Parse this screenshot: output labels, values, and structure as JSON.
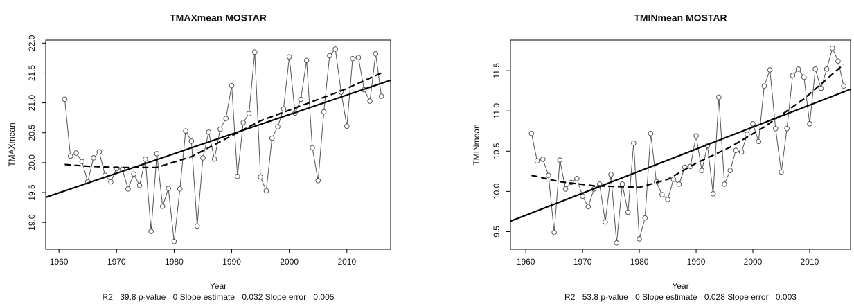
{
  "chart_data": [
    {
      "type": "line",
      "title": "TMAXmean   MOSTAR",
      "ylabel": "TMAXmean",
      "xlabel": "Year",
      "note": "R2= 39.8  p-value= 0  Slope estimate= 0.032  Slope error= 0.005",
      "xlim": [
        1957.7,
        2017.6
      ],
      "ylim": [
        18.55,
        22.05
      ],
      "xticks": [
        1960,
        1970,
        1980,
        1990,
        2000,
        2010
      ],
      "yticks": [
        {
          "value": 19,
          "label": "19.0"
        },
        19.5,
        {
          "value": 20,
          "label": "20.0"
        },
        20.5,
        {
          "value": 21,
          "label": "21.0"
        },
        21.5,
        {
          "value": 22,
          "label": "22.0"
        }
      ],
      "series": [
        {
          "color": "#555555",
          "markers": true,
          "dash": false,
          "width": 1,
          "x": [
            1961,
            1962,
            1963,
            1964,
            1965,
            1966,
            1967,
            1968,
            1969,
            1970,
            1971,
            1972,
            1973,
            1974,
            1975,
            1976,
            1977,
            1978,
            1979,
            1980,
            1981,
            1982,
            1983,
            1984,
            1985,
            1986,
            1987,
            1988,
            1989,
            1990,
            1991,
            1992,
            1993,
            1994,
            1995,
            1996,
            1997,
            1998,
            1999,
            2000,
            2001,
            2002,
            2003,
            2004,
            2005,
            2006,
            2007,
            2008,
            2009,
            2010,
            2011,
            2012,
            2013,
            2014,
            2015,
            2016
          ],
          "values": [
            21.06,
            20.11,
            20.16,
            20.02,
            19.68,
            20.08,
            20.18,
            19.79,
            19.68,
            19.9,
            19.89,
            19.56,
            19.81,
            19.62,
            20.06,
            18.85,
            20.15,
            19.27,
            19.57,
            18.68,
            19.56,
            20.53,
            20.36,
            18.94,
            20.08,
            20.51,
            20.06,
            20.56,
            20.74,
            21.29,
            19.77,
            20.67,
            20.82,
            21.85,
            19.76,
            19.53,
            20.41,
            20.6,
            20.9,
            21.77,
            20.83,
            21.06,
            21.71,
            20.25,
            19.7,
            20.85,
            21.79,
            21.9,
            21.18,
            20.61,
            21.74,
            21.76,
            21.22,
            21.03,
            21.82,
            21.11
          ]
        },
        {
          "color": "#000000",
          "markers": false,
          "dash": false,
          "width": 2.2,
          "x": [
            1957.7,
            2017.6
          ],
          "values": [
            19.42,
            21.38
          ]
        },
        {
          "color": "#000000",
          "markers": false,
          "dash": true,
          "width": 2.2,
          "x": [
            1961,
            1965,
            1970,
            1977,
            1983,
            1990,
            1995,
            2002,
            2009,
            2016
          ],
          "values": [
            19.97,
            19.94,
            19.92,
            19.92,
            20.1,
            20.45,
            20.7,
            20.95,
            21.2,
            21.5
          ]
        }
      ]
    },
    {
      "type": "line",
      "title": "TMINmean   MOSTAR",
      "ylabel": "TMINmean",
      "xlabel": "Year",
      "note": "R2= 53.8  p-value= 0  Slope estimate= 0.028  Slope error= 0.003",
      "xlim": [
        1957.3,
        2017.2
      ],
      "ylim": [
        9.28,
        11.88
      ],
      "xticks": [
        1960,
        1970,
        1980,
        1990,
        2000,
        2010
      ],
      "yticks": [
        9.5,
        {
          "value": 10,
          "label": "10.0"
        },
        10.5,
        {
          "value": 11,
          "label": "11.0"
        },
        11.5
      ],
      "series": [
        {
          "color": "#555555",
          "markers": true,
          "dash": false,
          "width": 1,
          "x": [
            1961,
            1962,
            1963,
            1964,
            1965,
            1966,
            1967,
            1968,
            1969,
            1970,
            1971,
            1972,
            1973,
            1974,
            1975,
            1976,
            1977,
            1978,
            1979,
            1980,
            1981,
            1982,
            1983,
            1984,
            1985,
            1986,
            1987,
            1988,
            1989,
            1990,
            1991,
            1992,
            1993,
            1994,
            1995,
            1996,
            1997,
            1998,
            1999,
            2000,
            2001,
            2002,
            2003,
            2004,
            2005,
            2006,
            2007,
            2008,
            2009,
            2010,
            2011,
            2012,
            2013,
            2014,
            2015,
            2016
          ],
          "values": [
            10.72,
            10.38,
            10.4,
            10.2,
            9.49,
            10.39,
            10.03,
            10.11,
            10.16,
            9.94,
            9.81,
            10.03,
            10.09,
            9.62,
            10.21,
            9.36,
            10.09,
            9.74,
            10.6,
            9.41,
            9.67,
            10.72,
            10.12,
            9.96,
            9.9,
            10.15,
            10.09,
            10.3,
            10.31,
            10.69,
            10.26,
            10.57,
            9.97,
            11.17,
            10.09,
            10.26,
            10.51,
            10.49,
            10.71,
            10.84,
            10.62,
            11.31,
            11.51,
            10.78,
            10.24,
            10.78,
            11.44,
            11.52,
            11.42,
            10.84,
            11.52,
            11.28,
            11.52,
            11.78,
            11.62,
            11.31
          ]
        },
        {
          "color": "#000000",
          "markers": false,
          "dash": false,
          "width": 2.2,
          "x": [
            1957.3,
            2017.2
          ],
          "values": [
            9.63,
            11.27
          ]
        },
        {
          "color": "#000000",
          "markers": false,
          "dash": true,
          "width": 2.2,
          "x": [
            1961,
            1966,
            1972,
            1980,
            1985,
            1990,
            1996,
            2002,
            2009,
            2016
          ],
          "values": [
            10.2,
            10.12,
            10.07,
            10.05,
            10.15,
            10.35,
            10.55,
            10.8,
            11.15,
            11.58
          ]
        }
      ]
    }
  ]
}
